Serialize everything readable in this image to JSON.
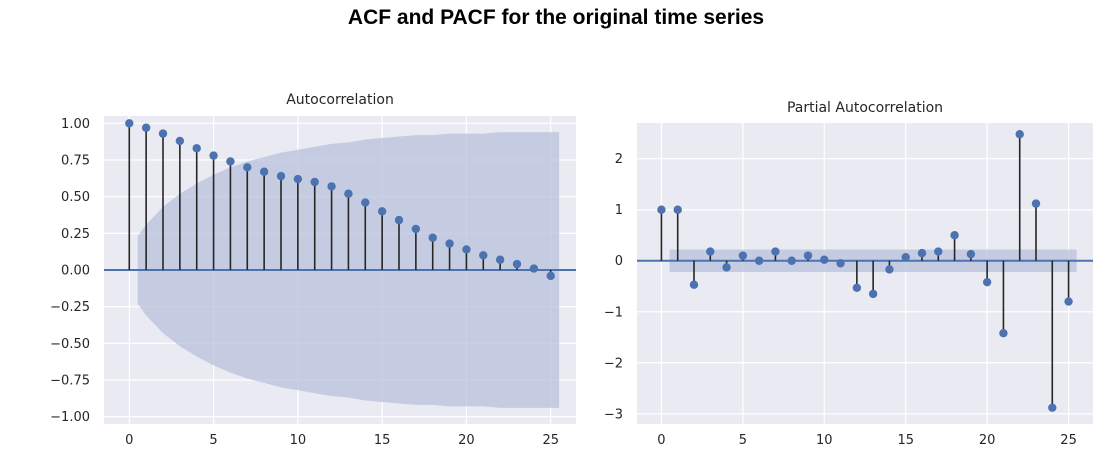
{
  "figure": {
    "title": "ACF and PACF for the original time series"
  },
  "colors": {
    "axes_bg": "#eaeaf2",
    "grid": "#ffffff",
    "marker": "#4c72b0",
    "stem": "#262626",
    "band": "#b8c1dc"
  },
  "chart_data": [
    {
      "type": "stem",
      "title": "Autocorrelation",
      "xlim": [
        -1.5,
        26.5
      ],
      "ylim": [
        -1.05,
        1.05
      ],
      "xticks": [
        0,
        5,
        10,
        15,
        20,
        25
      ],
      "yticks": [
        1.0,
        0.75,
        0.5,
        0.25,
        0.0,
        -0.25,
        -0.5,
        -0.75,
        -1.0
      ],
      "ytick_labels": [
        "1.00",
        "0.75",
        "0.50",
        "0.25",
        "0.00",
        "−0.25",
        "−0.50",
        "−0.75",
        "−1.00"
      ],
      "lags": [
        0,
        1,
        2,
        3,
        4,
        5,
        6,
        7,
        8,
        9,
        10,
        11,
        12,
        13,
        14,
        15,
        16,
        17,
        18,
        19,
        20,
        21,
        22,
        23,
        24,
        25
      ],
      "values": [
        1.0,
        0.97,
        0.93,
        0.88,
        0.83,
        0.78,
        0.74,
        0.7,
        0.67,
        0.64,
        0.62,
        0.6,
        0.57,
        0.52,
        0.46,
        0.4,
        0.34,
        0.28,
        0.22,
        0.18,
        0.14,
        0.1,
        0.07,
        0.04,
        0.01,
        -0.04
      ],
      "confidence_band": {
        "lags": [
          0.5,
          1,
          2,
          3,
          4,
          5,
          6,
          7,
          8,
          9,
          10,
          11,
          12,
          13,
          14,
          15,
          16,
          17,
          18,
          19,
          20,
          21,
          22,
          23,
          24,
          25,
          25.5
        ],
        "upper": [
          0.23,
          0.31,
          0.43,
          0.52,
          0.59,
          0.65,
          0.7,
          0.74,
          0.77,
          0.8,
          0.82,
          0.84,
          0.86,
          0.87,
          0.89,
          0.9,
          0.91,
          0.92,
          0.92,
          0.93,
          0.93,
          0.93,
          0.94,
          0.94,
          0.94,
          0.94,
          0.94
        ]
      }
    },
    {
      "type": "stem",
      "title": "Partial Autocorrelation",
      "xlim": [
        -1.5,
        26.5
      ],
      "ylim": [
        -3.2,
        2.7
      ],
      "xticks": [
        0,
        5,
        10,
        15,
        20,
        25
      ],
      "yticks": [
        2,
        1,
        0,
        -1,
        -2,
        -3
      ],
      "ytick_labels": [
        "2",
        "1",
        "0",
        "−1",
        "−2",
        "−3"
      ],
      "lags": [
        0,
        1,
        2,
        3,
        4,
        5,
        6,
        7,
        8,
        9,
        10,
        11,
        12,
        13,
        14,
        15,
        16,
        17,
        18,
        19,
        20,
        21,
        22,
        23,
        24,
        25
      ],
      "values": [
        1.0,
        1.0,
        -0.47,
        0.18,
        -0.13,
        0.1,
        0.0,
        0.18,
        0.0,
        0.1,
        0.02,
        -0.05,
        -0.53,
        -0.65,
        -0.17,
        0.07,
        0.15,
        0.18,
        0.5,
        0.13,
        -0.42,
        -1.42,
        2.48,
        1.12,
        -2.88,
        -0.8
      ],
      "confidence_band": {
        "x_range": [
          0.5,
          25.5
        ],
        "half_width": 0.22
      }
    }
  ]
}
